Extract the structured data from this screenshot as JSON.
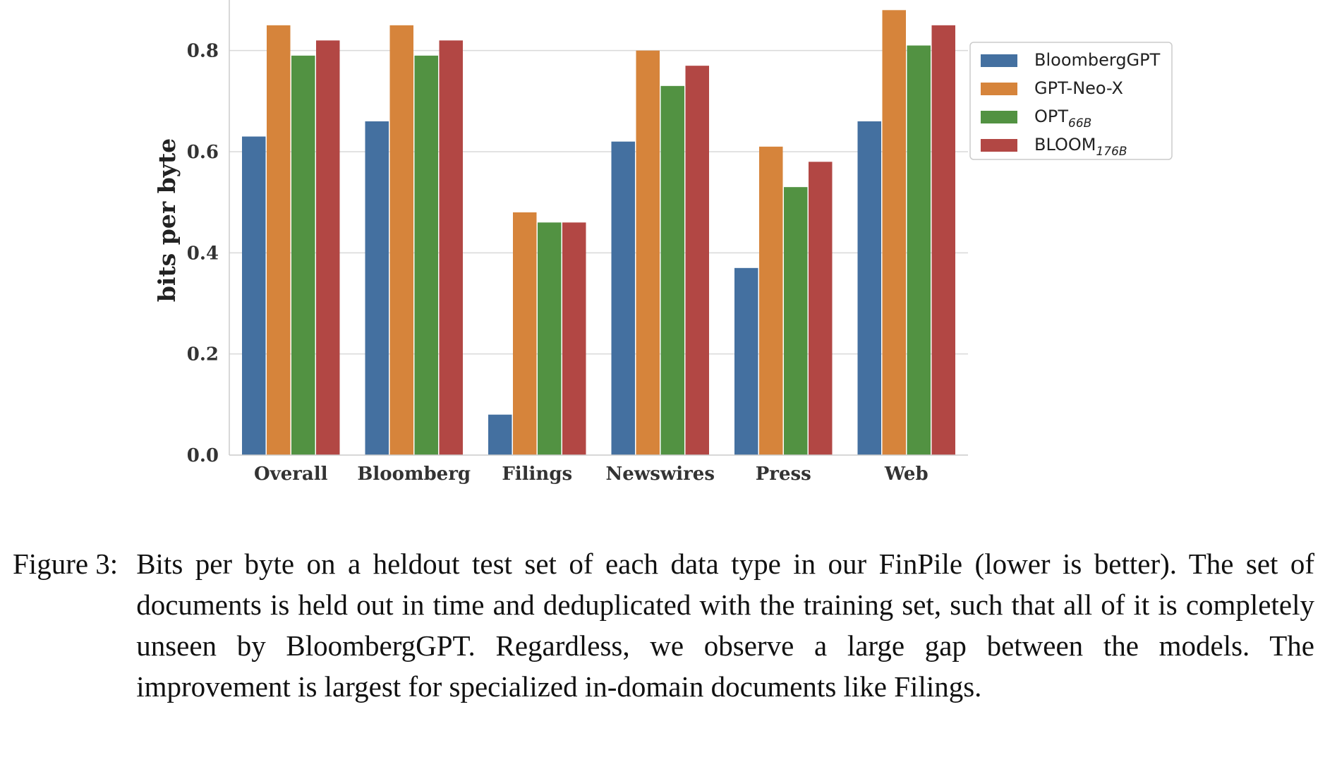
{
  "chart_data": {
    "type": "bar",
    "categories": [
      "Overall",
      "Bloomberg",
      "Filings",
      "Newswires",
      "Press",
      "Web"
    ],
    "series": [
      {
        "name": "BloombergGPT",
        "name_main": "BloombergGPT",
        "name_sub": "",
        "color": "#4470a0",
        "values": [
          0.63,
          0.66,
          0.08,
          0.62,
          0.37,
          0.66
        ]
      },
      {
        "name": "GPT-Neo-X",
        "name_main": "GPT-Neo-X",
        "name_sub": "",
        "color": "#d6843b",
        "values": [
          0.85,
          0.85,
          0.48,
          0.8,
          0.61,
          0.88
        ]
      },
      {
        "name": "OPT66B",
        "name_main": "OPT",
        "name_sub": "66B",
        "color": "#529242",
        "values": [
          0.79,
          0.79,
          0.46,
          0.73,
          0.53,
          0.81
        ]
      },
      {
        "name": "BLOOM176B",
        "name_main": "BLOOM",
        "name_sub": "176B",
        "color": "#b24744",
        "values": [
          0.82,
          0.82,
          0.46,
          0.77,
          0.58,
          0.85
        ]
      }
    ],
    "ylabel": "bits per byte",
    "xlabel": "",
    "yticks": [
      "0.0",
      "0.2",
      "0.4",
      "0.6",
      "0.8"
    ],
    "ylim": [
      0,
      0.9
    ],
    "grid": true,
    "legend_position": "top-right outside"
  },
  "caption": {
    "label": "Figure 3:",
    "text": "Bits per byte on a heldout test set of each data type in our FinPile (lower is better). The set of documents is held out in time and deduplicated with the training set, such that all of it is completely unseen by BloombergGPT. Regardless, we observe a large gap between the models. The improvement is largest for specialized in-domain documents like Filings."
  }
}
